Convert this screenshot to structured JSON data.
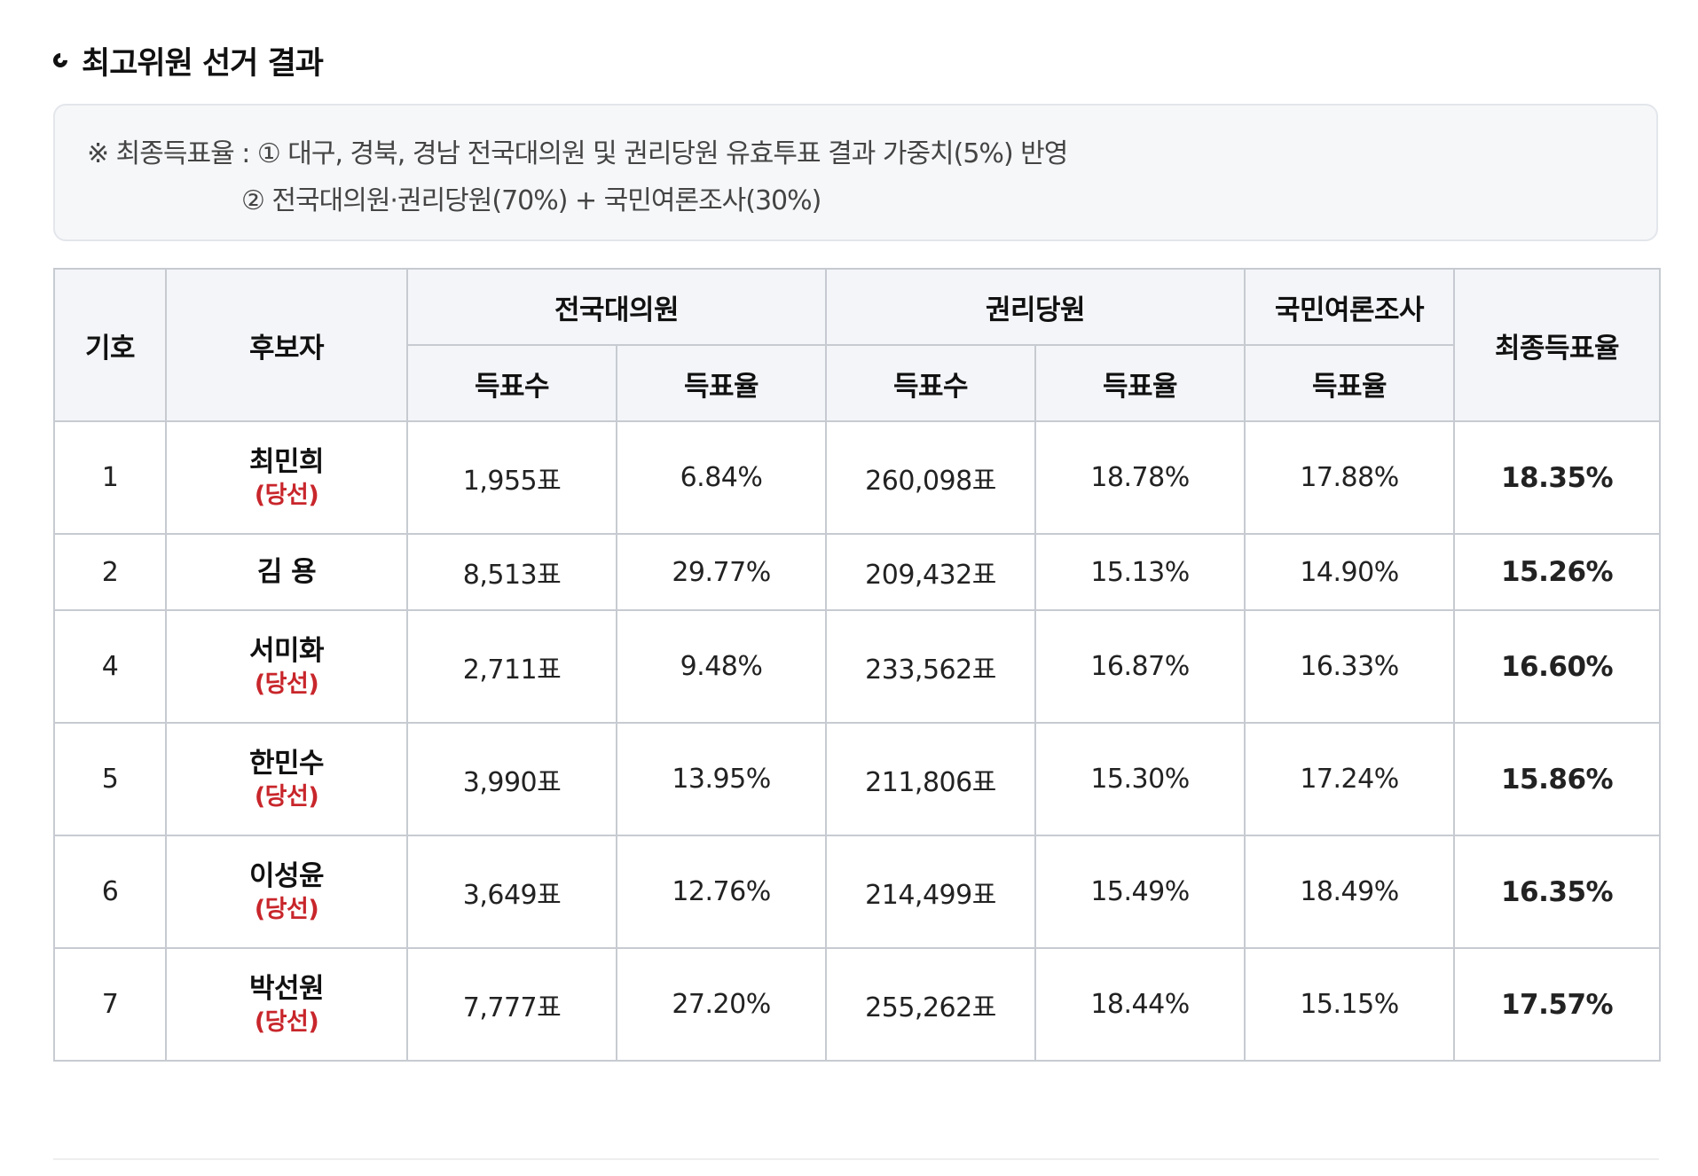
{
  "section": {
    "title": "최고위원 선거 결과"
  },
  "note": {
    "line1": "※ 최종득표율 : ① 대구, 경북, 경남 전국대의원 및 권리당원 유효투표 결과 가중치(5%) 반영",
    "line2": "② 전국대의원·권리당원(70%) + 국민여론조사(30%)"
  },
  "table": {
    "headers": {
      "number": "기호",
      "candidate": "후보자",
      "delegates": "전국대의원",
      "members": "권리당원",
      "poll": "국민여론조사",
      "final": "최종득표율",
      "votes": "득표수",
      "rate": "득표율"
    },
    "rows": [
      {
        "no": "1",
        "name": "최민희",
        "status": "(당선)",
        "del_votes": "1,955표",
        "del_rate": "6.84%",
        "mem_votes": "260,098표",
        "mem_rate": "18.78%",
        "poll_rate": "17.88%",
        "final_rate": "18.35%"
      },
      {
        "no": "2",
        "name": "김 용",
        "status": "",
        "del_votes": "8,513표",
        "del_rate": "29.77%",
        "mem_votes": "209,432표",
        "mem_rate": "15.13%",
        "poll_rate": "14.90%",
        "final_rate": "15.26%"
      },
      {
        "no": "4",
        "name": "서미화",
        "status": "(당선)",
        "del_votes": "2,711표",
        "del_rate": "9.48%",
        "mem_votes": "233,562표",
        "mem_rate": "16.87%",
        "poll_rate": "16.33%",
        "final_rate": "16.60%"
      },
      {
        "no": "5",
        "name": "한민수",
        "status": "(당선)",
        "del_votes": "3,990표",
        "del_rate": "13.95%",
        "mem_votes": "211,806표",
        "mem_rate": "15.30%",
        "poll_rate": "17.24%",
        "final_rate": "15.86%"
      },
      {
        "no": "6",
        "name": "이성윤",
        "status": "(당선)",
        "del_votes": "3,649표",
        "del_rate": "12.76%",
        "mem_votes": "214,499표",
        "mem_rate": "15.49%",
        "poll_rate": "18.49%",
        "final_rate": "16.35%"
      },
      {
        "no": "7",
        "name": "박선원",
        "status": "(당선)",
        "del_votes": "7,777표",
        "del_rate": "27.20%",
        "mem_votes": "255,262표",
        "mem_rate": "18.44%",
        "poll_rate": "15.15%",
        "final_rate": "17.57%"
      }
    ]
  },
  "colors": {
    "elected": "#c8262b",
    "final_rate": "#1b4f9c",
    "header_bg": "#f3f5f8",
    "border": "#c7cbd1"
  },
  "icons": {
    "title_bullet": "open-circle-icon"
  }
}
